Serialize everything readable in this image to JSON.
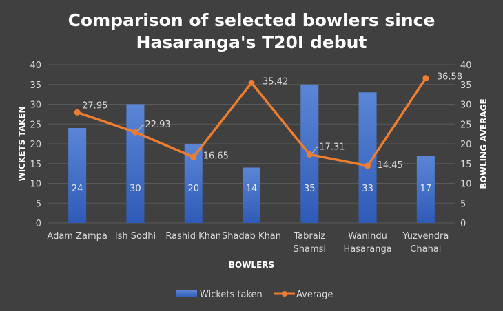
{
  "chart_data": {
    "type": "bar",
    "title": "Comparison of selected bowlers since Hasaranga's T20I debut",
    "title_lines": [
      "Comparison of selected bowlers since",
      "Hasaranga's T20I debut"
    ],
    "xlabel": "BOWLERS",
    "ylabel": "WICKETS TAKEN",
    "y2label": "BOWLING AVERAGE",
    "ylim": [
      0,
      40
    ],
    "y2lim": [
      0,
      40
    ],
    "yticks": [
      0,
      5,
      10,
      15,
      20,
      25,
      30,
      35,
      40
    ],
    "grid": true,
    "legend_position": "bottom",
    "categories": [
      [
        "Adam Zampa"
      ],
      [
        "Ish Sodhi"
      ],
      [
        "Rashid Khan"
      ],
      [
        "Shadab Khan"
      ],
      [
        "Tabraiz",
        "Shamsi"
      ],
      [
        "Wanindu",
        "Hasaranga"
      ],
      [
        "Yuzvendra",
        "Chahal"
      ]
    ],
    "series": [
      {
        "name": "Wickets taken",
        "type": "bar",
        "axis": "left",
        "color": "#4472c4",
        "values": [
          24,
          30,
          20,
          14,
          35,
          33,
          17
        ]
      },
      {
        "name": "Average",
        "type": "line",
        "axis": "right",
        "color": "#ed7d31",
        "values": [
          27.95,
          22.93,
          16.65,
          35.42,
          17.31,
          14.45,
          36.58
        ]
      }
    ]
  }
}
